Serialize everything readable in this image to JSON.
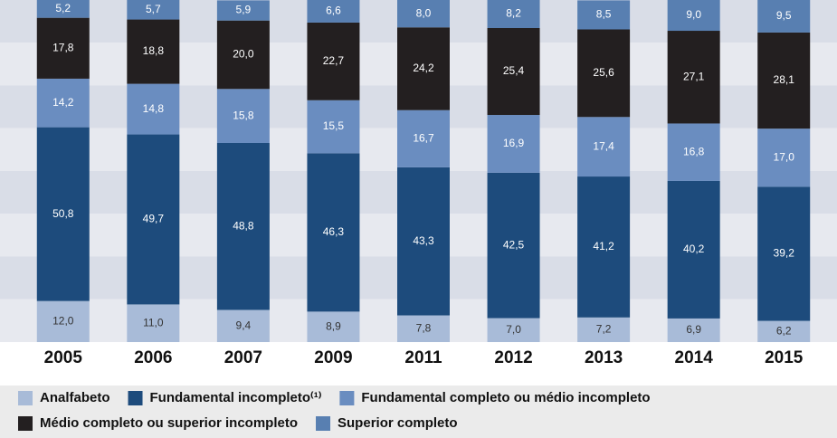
{
  "chart_data": {
    "type": "stacked_bar",
    "categories": [
      "2005",
      "2006",
      "2007",
      "2009",
      "2011",
      "2012",
      "2013",
      "2014",
      "2015"
    ],
    "ylim": [
      0,
      100
    ],
    "series": [
      {
        "name": "Analfabeto",
        "color": "#a8bbd8",
        "values": [
          12.0,
          11.0,
          9.4,
          8.9,
          7.8,
          7.0,
          7.2,
          6.9,
          6.2
        ],
        "value_labels": [
          "12,0",
          "11,0",
          "9,4",
          "8,9",
          "7,8",
          "7,0",
          "7,2",
          "6,9",
          "6,2"
        ]
      },
      {
        "name": "Fundamental incompleto⁽¹⁾",
        "color": "#1d4b7c",
        "values": [
          50.8,
          49.7,
          48.8,
          46.3,
          43.3,
          42.5,
          41.2,
          40.2,
          39.2
        ],
        "value_labels": [
          "50,8",
          "49,7",
          "48,8",
          "46,3",
          "43,3",
          "42,5",
          "41,2",
          "40,2",
          "39,2"
        ]
      },
      {
        "name": "Fundamental completo ou médio incompleto",
        "color": "#6a8dc0",
        "values": [
          14.2,
          14.8,
          15.8,
          15.5,
          16.7,
          16.9,
          17.4,
          16.8,
          17.0
        ],
        "value_labels": [
          "14,2",
          "14,8",
          "15,8",
          "15,5",
          "16,7",
          "16,9",
          "17,4",
          "16,8",
          "17,0"
        ]
      },
      {
        "name": "Médio completo ou superior incompleto",
        "color": "#231f20",
        "values": [
          17.8,
          18.8,
          20.0,
          22.7,
          24.2,
          25.4,
          25.6,
          27.1,
          28.1
        ],
        "value_labels": [
          "17,8",
          "18,8",
          "20,0",
          "22,7",
          "24,2",
          "25,4",
          "25,6",
          "27,1",
          "28,1"
        ]
      },
      {
        "name": "Superior completo",
        "color": "#587fb1",
        "values": [
          5.2,
          5.7,
          5.9,
          6.6,
          8.0,
          8.2,
          8.5,
          9.0,
          9.5
        ],
        "value_labels": [
          "5,2",
          "5,7",
          "5,9",
          "6,6",
          "8,0",
          "8,2",
          "8,5",
          "9,0",
          "9,5"
        ]
      }
    ]
  }
}
